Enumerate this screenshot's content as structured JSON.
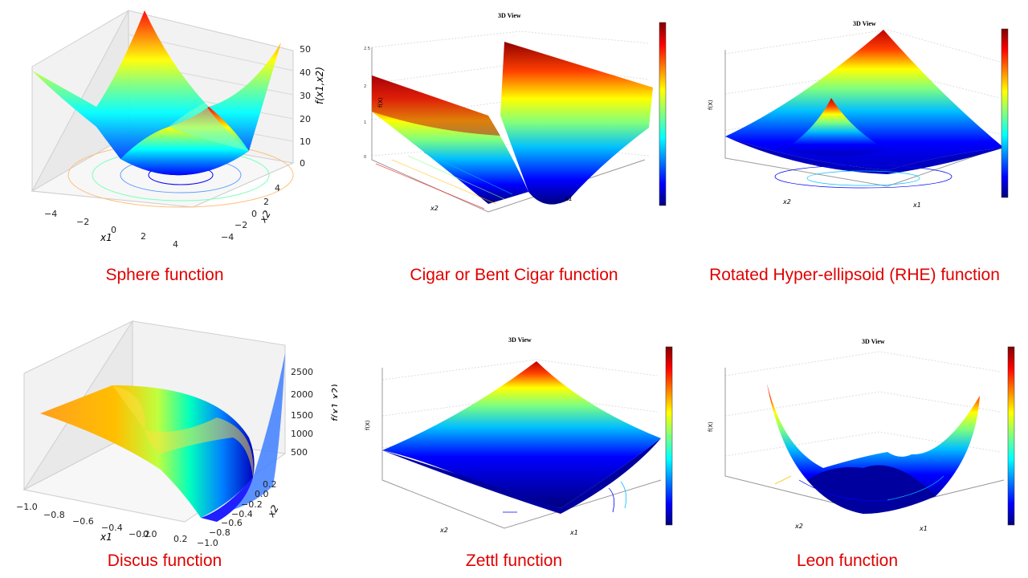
{
  "palette": {
    "jet": [
      "#00007f",
      "#0000ff",
      "#007fff",
      "#00ffff",
      "#7fff7f",
      "#ffff00",
      "#ff7f00",
      "#ff0000",
      "#7f0000"
    ],
    "caption_color": "#e00000"
  },
  "panels": [
    {
      "id": "sphere",
      "caption": "Sphere function",
      "axes": {
        "x_label": "x1",
        "y_label": "x2",
        "z_label": "f(x1,x2)",
        "x_ticks": [
          "−4",
          "−2",
          "0",
          "2",
          "4"
        ],
        "y_ticks": [
          "4",
          "2",
          "0",
          "−2",
          "−4"
        ],
        "z_ticks": [
          "50",
          "40",
          "30",
          "20",
          "10",
          "0"
        ]
      }
    },
    {
      "id": "cigar",
      "caption": "Cigar or Bent Cigar function",
      "title": "3D View",
      "axes": {
        "x_label": "x1",
        "y_label": "x2",
        "z_label": "f(X)"
      }
    },
    {
      "id": "rhe",
      "caption": "Rotated Hyper-ellipsoid (RHE) function",
      "title": "3D View",
      "axes": {
        "x_label": "x1",
        "y_label": "x2",
        "z_label": "f(X)"
      }
    },
    {
      "id": "discus",
      "caption": "Discus function",
      "axes": {
        "x_label": "x1",
        "y_label": "x2",
        "z_label": "f(x1,x2)",
        "x_ticks": [
          "−1.0",
          "−0.8",
          "−0.6",
          "−0.4",
          "−0.2",
          "0.0",
          "0.2"
        ],
        "y_ticks": [
          "0.2",
          "0.0",
          "−0.2",
          "−0.4",
          "−0.6",
          "−0.8",
          "−1.0"
        ],
        "z_ticks": [
          "2500",
          "2000",
          "1500",
          "1000",
          "500"
        ]
      }
    },
    {
      "id": "zettl",
      "caption": "Zettl function",
      "title": "3D View",
      "axes": {
        "x_label": "x1",
        "y_label": "x2",
        "z_label": "f(X)"
      }
    },
    {
      "id": "leon",
      "caption": "Leon function",
      "title": "3D View",
      "axes": {
        "x_label": "x1",
        "y_label": "x2",
        "z_label": "f(X)"
      }
    }
  ]
}
